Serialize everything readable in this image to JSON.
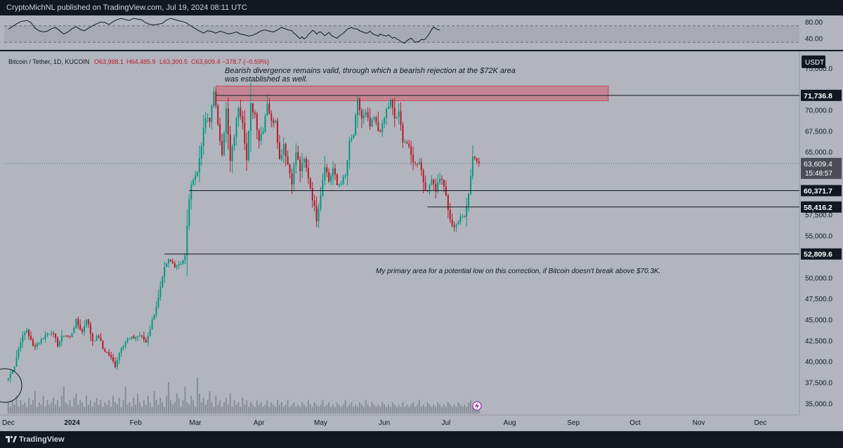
{
  "header": {
    "publisher": "CryptoMichNL published on TradingView.com, Jul 19, 2024 08:11 UTC"
  },
  "symbol": {
    "name": "Bitcoin / Tether, 1D, KUCOIN",
    "open": "O63,988.1",
    "high": "H64,485.9",
    "low": "L63,300.5",
    "close": "C63,609.4",
    "change": "−378.7 (−0.59%)",
    "currency": "USDT"
  },
  "colors": {
    "bg": "#b2b5be",
    "up": "#089981",
    "down": "#b71c2c",
    "zone": "#d35d6e",
    "text": "#131722"
  },
  "chart_data": [
    {
      "type": "line",
      "name": "RSI",
      "ylim": [
        10,
        95
      ],
      "ticks": [
        "80.00",
        "40.00"
      ],
      "tick_values": [
        80,
        40
      ],
      "band": [
        30,
        70
      ],
      "points": [
        [
          0,
          62
        ],
        [
          2,
          68
        ],
        [
          4,
          75
        ],
        [
          6,
          80
        ],
        [
          9,
          83
        ],
        [
          11,
          78
        ],
        [
          13,
          64
        ],
        [
          15,
          58
        ],
        [
          17,
          55
        ],
        [
          19,
          57
        ],
        [
          21,
          63
        ],
        [
          23,
          66
        ],
        [
          25,
          58
        ],
        [
          27,
          50
        ],
        [
          29,
          55
        ],
        [
          31,
          63
        ],
        [
          33,
          68
        ],
        [
          35,
          61
        ],
        [
          37,
          58
        ],
        [
          39,
          64
        ],
        [
          41,
          70
        ],
        [
          43,
          75
        ],
        [
          45,
          79
        ],
        [
          47,
          78
        ],
        [
          49,
          73
        ],
        [
          51,
          80
        ],
        [
          53,
          85
        ],
        [
          55,
          88
        ],
        [
          57,
          85
        ],
        [
          59,
          83
        ],
        [
          61,
          88
        ],
        [
          63,
          86
        ],
        [
          65,
          84
        ],
        [
          67,
          77
        ],
        [
          69,
          73
        ],
        [
          71,
          72
        ],
        [
          73,
          74
        ],
        [
          75,
          76
        ],
        [
          77,
          84
        ],
        [
          79,
          88
        ],
        [
          81,
          85
        ],
        [
          83,
          82
        ],
        [
          85,
          80
        ],
        [
          87,
          76
        ],
        [
          88,
          72
        ],
        [
          90,
          66
        ],
        [
          92,
          60
        ],
        [
          94,
          55
        ],
        [
          95,
          52
        ],
        [
          97,
          58
        ],
        [
          99,
          56
        ],
        [
          101,
          52
        ],
        [
          103,
          57
        ],
        [
          105,
          54
        ],
        [
          107,
          50
        ],
        [
          109,
          52
        ],
        [
          111,
          55
        ],
        [
          113,
          50
        ],
        [
          115,
          48
        ],
        [
          117,
          45
        ],
        [
          119,
          47
        ],
        [
          121,
          52
        ],
        [
          123,
          58
        ],
        [
          125,
          60
        ],
        [
          127,
          57
        ],
        [
          129,
          55
        ],
        [
          131,
          60
        ],
        [
          133,
          66
        ],
        [
          135,
          62
        ],
        [
          137,
          59
        ],
        [
          138,
          58
        ],
        [
          139,
          52
        ],
        [
          140,
          48
        ],
        [
          141,
          43
        ],
        [
          142,
          39
        ],
        [
          143,
          43
        ],
        [
          144,
          38
        ],
        [
          145,
          42
        ],
        [
          146,
          49
        ],
        [
          147,
          53
        ],
        [
          148,
          59
        ],
        [
          149,
          56
        ],
        [
          150,
          50
        ],
        [
          151,
          54
        ],
        [
          152,
          55
        ],
        [
          153,
          51
        ],
        [
          154,
          46
        ],
        [
          155,
          50
        ],
        [
          156,
          54
        ],
        [
          157,
          48
        ],
        [
          158,
          44
        ],
        [
          159,
          42
        ],
        [
          160,
          40
        ],
        [
          161,
          45
        ],
        [
          163,
          52
        ],
        [
          164,
          57
        ],
        [
          165,
          62
        ],
        [
          167,
          66
        ],
        [
          168,
          63
        ],
        [
          170,
          62
        ],
        [
          171,
          58
        ],
        [
          172,
          56
        ],
        [
          173,
          54
        ],
        [
          174,
          52
        ],
        [
          175,
          53
        ],
        [
          176,
          57
        ],
        [
          177,
          52
        ],
        [
          178,
          49
        ],
        [
          179,
          47
        ],
        [
          180,
          45
        ],
        [
          181,
          50
        ],
        [
          182,
          48
        ],
        [
          183,
          46
        ],
        [
          184,
          45
        ],
        [
          185,
          48
        ],
        [
          186,
          44
        ],
        [
          187,
          40
        ],
        [
          188,
          42
        ],
        [
          189,
          38
        ],
        [
          190,
          36
        ],
        [
          191,
          32
        ],
        [
          192,
          29
        ],
        [
          193,
          28
        ],
        [
          194,
          34
        ],
        [
          195,
          37
        ],
        [
          196,
          40
        ],
        [
          197,
          35
        ],
        [
          198,
          30
        ],
        [
          199,
          31
        ],
        [
          200,
          33
        ],
        [
          201,
          37
        ],
        [
          202,
          36
        ],
        [
          203,
          38
        ],
        [
          204,
          45
        ],
        [
          205,
          52
        ],
        [
          206,
          61
        ],
        [
          207,
          67
        ],
        [
          208,
          63
        ],
        [
          209,
          61
        ],
        [
          210,
          60
        ]
      ]
    },
    {
      "type": "candlestick",
      "name": "Bitcoin / Tether, 1D, KUCOIN",
      "ylim": [
        33600,
        77000
      ],
      "y_ticks": [
        35000,
        37500,
        40000,
        42500,
        45000,
        47500,
        50000,
        52500,
        55000,
        57500,
        60000,
        62500,
        65000,
        67500,
        70000,
        72500,
        75000
      ],
      "y_tick_labels": [
        "35,000.0",
        "37,500.0",
        "40,000.0",
        "42,500.0",
        "45,000.0",
        "47,500.0",
        "50,000.0",
        "52,500.0",
        "55,000.0",
        "57,500.0",
        "60,000.0",
        "62,500.0",
        "65,000.0",
        "67,500.0",
        "70,000.0",
        "72,500.0",
        "75,000.0"
      ],
      "x_ticks": [
        {
          "label": "Dec",
          "index": 0
        },
        {
          "label": "2024",
          "index": 31
        },
        {
          "label": "Feb",
          "index": 62
        },
        {
          "label": "Mar",
          "index": 91
        },
        {
          "label": "Apr",
          "index": 122
        },
        {
          "label": "May",
          "index": 152
        },
        {
          "label": "Jun",
          "index": 183
        },
        {
          "label": "Jul",
          "index": 213
        },
        {
          "label": "Aug",
          "index": 244
        },
        {
          "label": "Sep",
          "index": 275
        },
        {
          "label": "Oct",
          "index": 305
        },
        {
          "label": "Nov",
          "index": 336
        },
        {
          "label": "Dec",
          "index": 366
        }
      ],
      "x_range": [
        -2,
        385
      ],
      "anchors": [
        [
          0,
          38000
        ],
        [
          3,
          39500
        ],
        [
          6,
          42500
        ],
        [
          9,
          43800
        ],
        [
          12,
          41800
        ],
        [
          15,
          42300
        ],
        [
          18,
          43100
        ],
        [
          21,
          43600
        ],
        [
          24,
          42000
        ],
        [
          27,
          43200
        ],
        [
          30,
          42800
        ],
        [
          33,
          44800
        ],
        [
          36,
          43500
        ],
        [
          38,
          45200
        ],
        [
          41,
          42500
        ],
        [
          44,
          43000
        ],
        [
          46,
          41500
        ],
        [
          49,
          40800
        ],
        [
          52,
          39500
        ],
        [
          55,
          41800
        ],
        [
          58,
          42600
        ],
        [
          61,
          42800
        ],
        [
          64,
          43100
        ],
        [
          67,
          42300
        ],
        [
          70,
          44800
        ],
        [
          73,
          47500
        ],
        [
          76,
          51000
        ],
        [
          78,
          52000
        ],
        [
          81,
          51500
        ],
        [
          84,
          51800
        ],
        [
          86,
          52500
        ],
        [
          88,
          59500
        ],
        [
          90,
          62000
        ],
        [
          92,
          62500
        ],
        [
          94,
          66000
        ],
        [
          96,
          69000
        ],
        [
          98,
          68500
        ],
        [
          100,
          72500
        ],
        [
          102,
          68000
        ],
        [
          104,
          65000
        ],
        [
          106,
          70000
        ],
        [
          108,
          63800
        ],
        [
          110,
          67000
        ],
        [
          112,
          70500
        ],
        [
          114,
          68800
        ],
        [
          116,
          64000
        ],
        [
          118,
          70500
        ],
        [
          120,
          69500
        ],
        [
          122,
          66500
        ],
        [
          124,
          67800
        ],
        [
          126,
          71000
        ],
        [
          128,
          68500
        ],
        [
          130,
          69000
        ],
        [
          132,
          64000
        ],
        [
          134,
          66000
        ],
        [
          136,
          63500
        ],
        [
          138,
          61500
        ],
        [
          140,
          65000
        ],
        [
          142,
          62800
        ],
        [
          144,
          64000
        ],
        [
          146,
          62000
        ],
        [
          148,
          59500
        ],
        [
          150,
          57000
        ],
        [
          152,
          60000
        ],
        [
          154,
          63500
        ],
        [
          156,
          61500
        ],
        [
          158,
          63000
        ],
        [
          160,
          61000
        ],
        [
          162,
          61500
        ],
        [
          164,
          62000
        ],
        [
          166,
          66000
        ],
        [
          168,
          67000
        ],
        [
          170,
          71000
        ],
        [
          172,
          69000
        ],
        [
          174,
          69500
        ],
        [
          176,
          68000
        ],
        [
          178,
          69000
        ],
        [
          180,
          67500
        ],
        [
          182,
          68000
        ],
        [
          184,
          70000
        ],
        [
          186,
          71000
        ],
        [
          188,
          69000
        ],
        [
          190,
          69500
        ],
        [
          192,
          66500
        ],
        [
          194,
          66000
        ],
        [
          196,
          64500
        ],
        [
          198,
          63500
        ],
        [
          200,
          64000
        ],
        [
          202,
          61500
        ],
        [
          204,
          60000
        ],
        [
          206,
          62000
        ],
        [
          208,
          60500
        ],
        [
          210,
          62000
        ],
        [
          212,
          61000
        ],
        [
          214,
          58000
        ],
        [
          216,
          56000
        ],
        [
          218,
          56500
        ],
        [
          220,
          57000
        ],
        [
          222,
          57500
        ],
        [
          224,
          60000
        ],
        [
          226,
          64500
        ],
        [
          228,
          64000
        ],
        [
          229,
          63600
        ]
      ],
      "volume": [
        5,
        3,
        6,
        4,
        8,
        3,
        6,
        4,
        5,
        3,
        7,
        4,
        6,
        10,
        3,
        5,
        4,
        8,
        3,
        6,
        4,
        5,
        7,
        4,
        6,
        3,
        8,
        12,
        5,
        4,
        6,
        3,
        7,
        9,
        4,
        6,
        5,
        3,
        8,
        4,
        6,
        3,
        5,
        7,
        4,
        6,
        3,
        5,
        4,
        6,
        3,
        8,
        5,
        4,
        7,
        3,
        6,
        12,
        4,
        5,
        3,
        7,
        4,
        9,
        5,
        3,
        6,
        4,
        8,
        5,
        3,
        10,
        6,
        4,
        7,
        5,
        3,
        8,
        14,
        6,
        4,
        5,
        9,
        7,
        3,
        6,
        12,
        5,
        4,
        8,
        6,
        3,
        16,
        9,
        5,
        7,
        4,
        6,
        10,
        5,
        3,
        8,
        4,
        6,
        3,
        5,
        7,
        4,
        9,
        3,
        6,
        4,
        5,
        3,
        7,
        4,
        6,
        3,
        5,
        4,
        3,
        6,
        4,
        5,
        3,
        4,
        6,
        3,
        5,
        4,
        3,
        6,
        4,
        5,
        3,
        4,
        6,
        3,
        4,
        5,
        3,
        4,
        3,
        5,
        4,
        3,
        6,
        4,
        3,
        5,
        4,
        3,
        4,
        6,
        3,
        4,
        5,
        3,
        4,
        3,
        5,
        4,
        3,
        4,
        6,
        3,
        4,
        5,
        3,
        4,
        3,
        5,
        4,
        3,
        6,
        4,
        3,
        5,
        4,
        3,
        4,
        3,
        5,
        4,
        3,
        4,
        3,
        5,
        4,
        3,
        4,
        3,
        5,
        3,
        4,
        3,
        4,
        5,
        3,
        4,
        6,
        3,
        4,
        3,
        5,
        4,
        3,
        4,
        3,
        5,
        4,
        3,
        4,
        3,
        5,
        4,
        3,
        4,
        3,
        5,
        4,
        3,
        4,
        3,
        5,
        6
      ],
      "levels": [
        {
          "value": 71736.8,
          "label": "71,736.8",
          "start": 101
        },
        {
          "value": 60371.7,
          "label": "60,371.7",
          "start": 88
        },
        {
          "value": 58416.2,
          "label": "58,416.2",
          "start": 204
        },
        {
          "value": 52809.6,
          "label": "52,809.6",
          "start": 76
        }
      ],
      "price_label": {
        "value": 63609.4,
        "label": "63,609.4",
        "countdown": "15:48:57"
      },
      "resistance_zone": {
        "x0": 101,
        "x1": 292,
        "y0": 71100,
        "y1": 72850
      },
      "annotations": [
        "Bearish divergence remains valid, through which a bearish rejection at the $72K area",
        "was established as well.",
        "My primary area for a potential low on this correction, if Bitcoin doesn't break above $70.3K."
      ]
    }
  ],
  "footer": {
    "brand": "TradingView"
  }
}
